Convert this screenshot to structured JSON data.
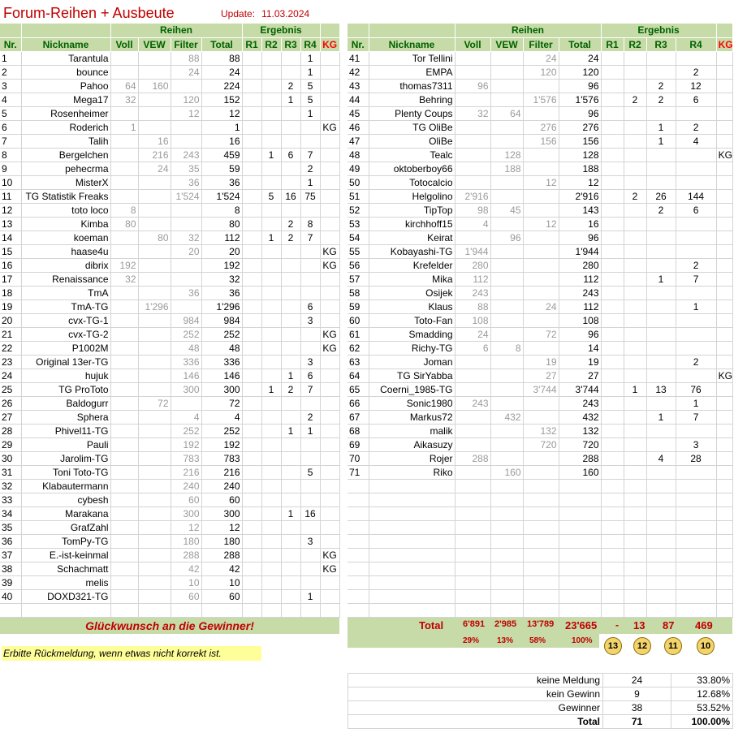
{
  "header": {
    "title": "Forum-Reihen + Ausbeute",
    "update_label": "Update:",
    "update_date": "11.03.2024"
  },
  "columns": {
    "nr": "Nr.",
    "nickname": "Nickname",
    "reihen": "Reihen",
    "ergebnis": "Ergebnis",
    "voll": "Voll",
    "vew": "VEW",
    "filter": "Filter",
    "total": "Total",
    "r1": "R1",
    "r2": "R2",
    "r3": "R3",
    "r4": "R4",
    "kg": "KG"
  },
  "left_rows": [
    [
      "1",
      "Tarantula",
      "",
      "",
      "88",
      "88",
      "",
      "",
      "",
      "1",
      ""
    ],
    [
      "2",
      "bounce",
      "",
      "",
      "24",
      "24",
      "",
      "",
      "",
      "1",
      ""
    ],
    [
      "3",
      "Pahoo",
      "64",
      "160",
      "",
      "224",
      "",
      "",
      "2",
      "5",
      ""
    ],
    [
      "4",
      "Mega17",
      "32",
      "",
      "120",
      "152",
      "",
      "",
      "1",
      "5",
      ""
    ],
    [
      "5",
      "Rosenheimer",
      "",
      "",
      "12",
      "12",
      "",
      "",
      "",
      "1",
      ""
    ],
    [
      "6",
      "Roderich",
      "1",
      "",
      "",
      "1",
      "",
      "",
      "",
      "",
      "KG"
    ],
    [
      "7",
      "Talih",
      "",
      "16",
      "",
      "16",
      "",
      "",
      "",
      "",
      ""
    ],
    [
      "8",
      "Bergelchen",
      "",
      "216",
      "243",
      "459",
      "",
      "1",
      "6",
      "7",
      ""
    ],
    [
      "9",
      "pehecrma",
      "",
      "24",
      "35",
      "59",
      "",
      "",
      "",
      "2",
      ""
    ],
    [
      "10",
      "MisterX",
      "",
      "",
      "36",
      "36",
      "",
      "",
      "",
      "1",
      ""
    ],
    [
      "11",
      "TG Statistik Freaks",
      "",
      "",
      "1'524",
      "1'524",
      "",
      "5",
      "16",
      "75",
      ""
    ],
    [
      "12",
      "toto loco",
      "8",
      "",
      "",
      "8",
      "",
      "",
      "",
      "",
      ""
    ],
    [
      "13",
      "Kimba",
      "80",
      "",
      "",
      "80",
      "",
      "",
      "2",
      "8",
      ""
    ],
    [
      "14",
      "koeman",
      "",
      "80",
      "32",
      "112",
      "",
      "1",
      "2",
      "7",
      ""
    ],
    [
      "15",
      "haase4u",
      "",
      "",
      "20",
      "20",
      "",
      "",
      "",
      "",
      "KG"
    ],
    [
      "16",
      "dibrix",
      "192",
      "",
      "",
      "192",
      "",
      "",
      "",
      "",
      "KG"
    ],
    [
      "17",
      "Renaissance",
      "32",
      "",
      "",
      "32",
      "",
      "",
      "",
      "",
      ""
    ],
    [
      "18",
      "TmA",
      "",
      "",
      "36",
      "36",
      "",
      "",
      "",
      "",
      ""
    ],
    [
      "19",
      "TmA-TG",
      "",
      "1'296",
      "",
      "1'296",
      "",
      "",
      "",
      "6",
      ""
    ],
    [
      "20",
      "cvx-TG-1",
      "",
      "",
      "984",
      "984",
      "",
      "",
      "",
      "3",
      ""
    ],
    [
      "21",
      "cvx-TG-2",
      "",
      "",
      "252",
      "252",
      "",
      "",
      "",
      "",
      "KG"
    ],
    [
      "22",
      "P1002M",
      "",
      "",
      "48",
      "48",
      "",
      "",
      "",
      "",
      "KG"
    ],
    [
      "23",
      "Original 13er-TG",
      "",
      "",
      "336",
      "336",
      "",
      "",
      "",
      "3",
      ""
    ],
    [
      "24",
      "hujuk",
      "",
      "",
      "146",
      "146",
      "",
      "",
      "1",
      "6",
      ""
    ],
    [
      "25",
      "TG ProToto",
      "",
      "",
      "300",
      "300",
      "",
      "1",
      "2",
      "7",
      ""
    ],
    [
      "26",
      "Baldogurr",
      "",
      "72",
      "",
      "72",
      "",
      "",
      "",
      "",
      ""
    ],
    [
      "27",
      "Sphera",
      "",
      "",
      "4",
      "4",
      "",
      "",
      "",
      "2",
      ""
    ],
    [
      "28",
      "Phivel11-TG",
      "",
      "",
      "252",
      "252",
      "",
      "",
      "1",
      "1",
      ""
    ],
    [
      "29",
      "Pauli",
      "",
      "",
      "192",
      "192",
      "",
      "",
      "",
      "",
      ""
    ],
    [
      "30",
      "Jarolim-TG",
      "",
      "",
      "783",
      "783",
      "",
      "",
      "",
      "",
      ""
    ],
    [
      "31",
      "Toni Toto-TG",
      "",
      "",
      "216",
      "216",
      "",
      "",
      "",
      "5",
      ""
    ],
    [
      "32",
      "Klabautermann",
      "",
      "",
      "240",
      "240",
      "",
      "",
      "",
      "",
      ""
    ],
    [
      "33",
      "cybesh",
      "",
      "",
      "60",
      "60",
      "",
      "",
      "",
      "",
      ""
    ],
    [
      "34",
      "Marakana",
      "",
      "",
      "300",
      "300",
      "",
      "",
      "1",
      "16",
      ""
    ],
    [
      "35",
      "GrafZahl",
      "",
      "",
      "12",
      "12",
      "",
      "",
      "",
      "",
      ""
    ],
    [
      "36",
      "TomPy-TG",
      "",
      "",
      "180",
      "180",
      "",
      "",
      "",
      "3",
      ""
    ],
    [
      "37",
      "E.-ist-keinmal",
      "",
      "",
      "288",
      "288",
      "",
      "",
      "",
      "",
      "KG"
    ],
    [
      "38",
      "Schachmatt",
      "",
      "",
      "42",
      "42",
      "",
      "",
      "",
      "",
      "KG"
    ],
    [
      "39",
      "melis",
      "",
      "",
      "10",
      "10",
      "",
      "",
      "",
      "",
      ""
    ],
    [
      "40",
      "DOXD321-TG",
      "",
      "",
      "60",
      "60",
      "",
      "",
      "",
      "1",
      ""
    ]
  ],
  "right_rows": [
    [
      "41",
      "Tor Tellini",
      "",
      "",
      "24",
      "24",
      "",
      "",
      "",
      "",
      ""
    ],
    [
      "42",
      "EMPA",
      "",
      "",
      "120",
      "120",
      "",
      "",
      "",
      "2",
      ""
    ],
    [
      "43",
      "thomas7311",
      "96",
      "",
      "",
      "96",
      "",
      "",
      "2",
      "12",
      ""
    ],
    [
      "44",
      "Behring",
      "",
      "",
      "1'576",
      "1'576",
      "",
      "2",
      "2",
      "6",
      ""
    ],
    [
      "45",
      "Plenty Coups",
      "32",
      "64",
      "",
      "96",
      "",
      "",
      "",
      "",
      ""
    ],
    [
      "46",
      "TG OliBe",
      "",
      "",
      "276",
      "276",
      "",
      "",
      "1",
      "2",
      ""
    ],
    [
      "47",
      "OliBe",
      "",
      "",
      "156",
      "156",
      "",
      "",
      "1",
      "4",
      ""
    ],
    [
      "48",
      "Tealc",
      "",
      "128",
      "",
      "128",
      "",
      "",
      "",
      "",
      "KG"
    ],
    [
      "49",
      "oktoberboy66",
      "",
      "188",
      "",
      "188",
      "",
      "",
      "",
      "",
      ""
    ],
    [
      "50",
      "Totocalcio",
      "",
      "",
      "12",
      "12",
      "",
      "",
      "",
      "",
      ""
    ],
    [
      "51",
      "Helgolino",
      "2'916",
      "",
      "",
      "2'916",
      "",
      "2",
      "26",
      "144",
      ""
    ],
    [
      "52",
      "TipTop",
      "98",
      "45",
      "",
      "143",
      "",
      "",
      "2",
      "6",
      ""
    ],
    [
      "53",
      "kirchhoff15",
      "4",
      "",
      "12",
      "16",
      "",
      "",
      "",
      "",
      ""
    ],
    [
      "54",
      "Keirat",
      "",
      "96",
      "",
      "96",
      "",
      "",
      "",
      "",
      ""
    ],
    [
      "55",
      "Kobayashi-TG",
      "1'944",
      "",
      "",
      "1'944",
      "",
      "",
      "",
      "",
      ""
    ],
    [
      "56",
      "Krefelder",
      "280",
      "",
      "",
      "280",
      "",
      "",
      "",
      "2",
      ""
    ],
    [
      "57",
      "Mika",
      "112",
      "",
      "",
      "112",
      "",
      "",
      "1",
      "7",
      ""
    ],
    [
      "58",
      "Osijek",
      "243",
      "",
      "",
      "243",
      "",
      "",
      "",
      "",
      ""
    ],
    [
      "59",
      "Klaus",
      "88",
      "",
      "24",
      "112",
      "",
      "",
      "",
      "1",
      ""
    ],
    [
      "60",
      "Toto-Fan",
      "108",
      "",
      "",
      "108",
      "",
      "",
      "",
      "",
      ""
    ],
    [
      "61",
      "Smadding",
      "24",
      "",
      "72",
      "96",
      "",
      "",
      "",
      "",
      ""
    ],
    [
      "62",
      "Richy-TG",
      "6",
      "8",
      "",
      "14",
      "",
      "",
      "",
      "",
      ""
    ],
    [
      "63",
      "Joman",
      "",
      "",
      "19",
      "19",
      "",
      "",
      "",
      "2",
      ""
    ],
    [
      "64",
      "TG SirYabba",
      "",
      "",
      "27",
      "27",
      "",
      "",
      "",
      "",
      "KG"
    ],
    [
      "65",
      "Coerni_1985-TG",
      "",
      "",
      "3'744",
      "3'744",
      "",
      "1",
      "13",
      "76",
      ""
    ],
    [
      "66",
      "Sonic1980",
      "243",
      "",
      "",
      "243",
      "",
      "",
      "",
      "1",
      ""
    ],
    [
      "67",
      "Markus72",
      "",
      "432",
      "",
      "432",
      "",
      "",
      "1",
      "7",
      ""
    ],
    [
      "68",
      "malik",
      "",
      "",
      "132",
      "132",
      "",
      "",
      "",
      "",
      ""
    ],
    [
      "69",
      "Aikasuzy",
      "",
      "",
      "720",
      "720",
      "",
      "",
      "",
      "3",
      ""
    ],
    [
      "70",
      "Rojer",
      "288",
      "",
      "",
      "288",
      "",
      "",
      "4",
      "28",
      ""
    ],
    [
      "71",
      "Riko",
      "",
      "160",
      "",
      "160",
      "",
      "",
      "",
      "",
      ""
    ]
  ],
  "congrats": "Glückwunsch an die Gewinner!",
  "feedback": "Erbitte Rückmeldung, wenn etwas nicht korrekt ist.",
  "totals": {
    "label": "Total",
    "voll": "6'891",
    "vew": "2'985",
    "filter": "13'789",
    "total": "23'665",
    "r1": "-",
    "r2": "13",
    "r3": "87",
    "r4": "469"
  },
  "percents": {
    "voll": "29%",
    "vew": "13%",
    "filter": "58%",
    "total": "100%"
  },
  "trophies": [
    "13",
    "12",
    "11",
    "10"
  ],
  "summary": [
    {
      "label": "keine Meldung",
      "count": "24",
      "pct": "33.80%"
    },
    {
      "label": "kein Gewinn",
      "count": "9",
      "pct": "12.68%"
    },
    {
      "label": "Gewinner",
      "count": "38",
      "pct": "53.52%"
    },
    {
      "label": "Total",
      "count": "71",
      "pct": "100.00%"
    }
  ]
}
